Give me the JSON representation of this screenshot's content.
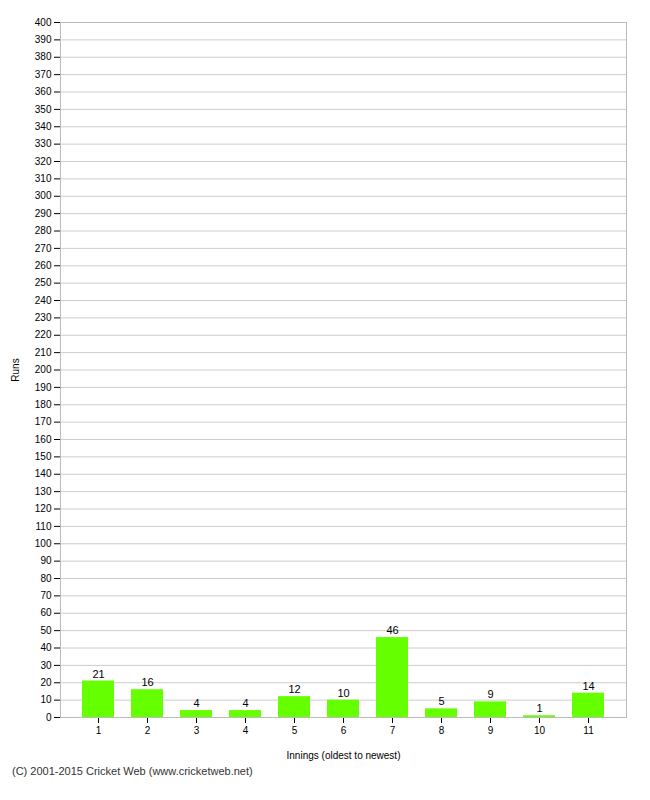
{
  "chart_data": {
    "type": "bar",
    "categories": [
      "1",
      "2",
      "3",
      "4",
      "5",
      "6",
      "7",
      "8",
      "9",
      "10",
      "11"
    ],
    "values": [
      21,
      16,
      4,
      4,
      12,
      10,
      46,
      5,
      9,
      1,
      14
    ],
    "color": "#66ff00",
    "xlabel": "Innings (oldest to newest)",
    "ylabel": "Runs",
    "ylim": [
      0,
      400
    ],
    "yticks": [
      0,
      10,
      20,
      30,
      40,
      50,
      60,
      70,
      80,
      90,
      100,
      110,
      120,
      130,
      140,
      150,
      160,
      170,
      180,
      190,
      200,
      210,
      220,
      230,
      240,
      250,
      260,
      270,
      280,
      290,
      300,
      310,
      320,
      330,
      340,
      350,
      360,
      370,
      380,
      390,
      400
    ],
    "grid": true,
    "data_labels": true,
    "annotations": [
      "(C) 2001-2015 Cricket Web (www.cricketweb.net)"
    ]
  }
}
